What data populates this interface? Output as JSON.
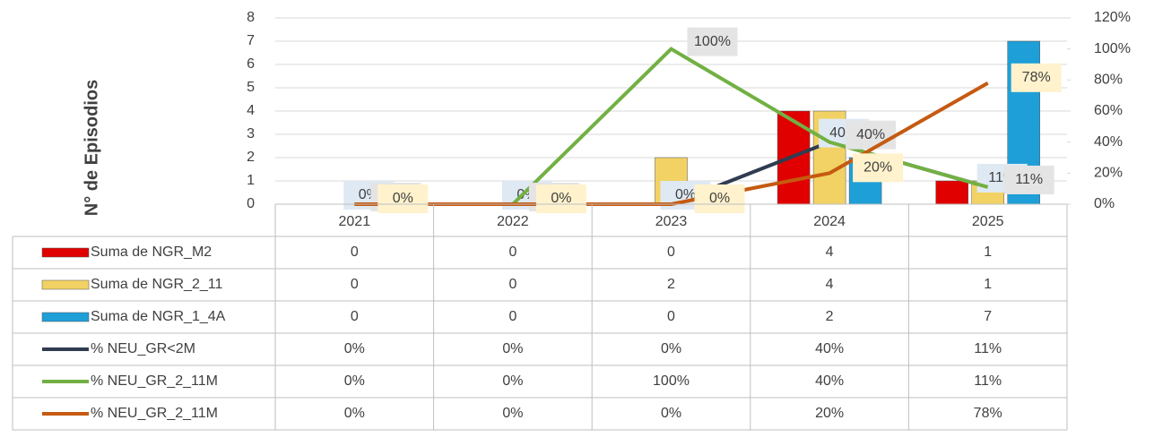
{
  "chart_data": {
    "type": "bar",
    "y_label": "N° de Episodios",
    "categories": [
      "2021",
      "2022",
      "2023",
      "2024",
      "2025"
    ],
    "ylim": [
      0,
      8
    ],
    "yticks": [
      0,
      1,
      2,
      3,
      4,
      5,
      6,
      7,
      8
    ],
    "y2lim": [
      0,
      120
    ],
    "y2ticks": [
      {
        "value": 0,
        "label": "0%"
      },
      {
        "value": 20,
        "label": "20%"
      },
      {
        "value": 40,
        "label": "40%"
      },
      {
        "value": 60,
        "label": "60%"
      },
      {
        "value": 80,
        "label": "80%"
      },
      {
        "value": 100,
        "label": "100%"
      },
      {
        "value": 120,
        "label": "120%"
      }
    ],
    "grid": true,
    "series": [
      {
        "name": "Suma de NGR_M2",
        "type": "bar",
        "color": "#e00000",
        "values": [
          0,
          0,
          0,
          4,
          1
        ]
      },
      {
        "name": "Suma de NGR_2_11",
        "type": "bar",
        "color": "#f2d264",
        "values": [
          0,
          0,
          2,
          4,
          1
        ]
      },
      {
        "name": "Suma de NGR_1_4A",
        "type": "bar",
        "color": "#1f9fd8",
        "values": [
          0,
          0,
          0,
          2,
          7
        ]
      },
      {
        "name": "% NEU_GR<2M",
        "type": "line",
        "axis": "y2",
        "color": "#2f3c50",
        "values": [
          0,
          0,
          0,
          40,
          11
        ],
        "value_labels": [
          "0%",
          "0%",
          "0%",
          "40%",
          "11%"
        ]
      },
      {
        "name": "% NEU_GR_2_11M",
        "type": "line",
        "axis": "y2",
        "color": "#72b043",
        "values": [
          0,
          0,
          100,
          40,
          11
        ],
        "value_labels": [
          "0%",
          "0%",
          "100%",
          "40%",
          "11%"
        ]
      },
      {
        "name": "% NEU_GR_2_11M",
        "type": "line",
        "axis": "y2",
        "color": "#c55a11",
        "values": [
          0,
          0,
          0,
          20,
          78
        ],
        "value_labels": [
          "0%",
          "0%",
          "0%",
          "20%",
          "78%"
        ]
      }
    ]
  }
}
